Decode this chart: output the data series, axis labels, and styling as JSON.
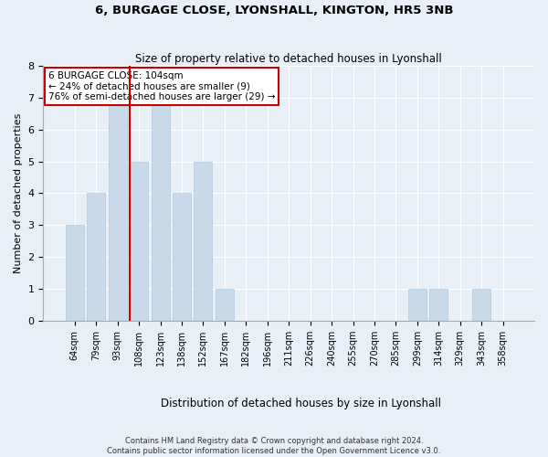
{
  "title": "6, BURGAGE CLOSE, LYONSHALL, KINGTON, HR5 3NB",
  "subtitle": "Size of property relative to detached houses in Lyonshall",
  "xlabel": "Distribution of detached houses by size in Lyonshall",
  "ylabel": "Number of detached properties",
  "categories": [
    "64sqm",
    "79sqm",
    "93sqm",
    "108sqm",
    "123sqm",
    "138sqm",
    "152sqm",
    "167sqm",
    "182sqm",
    "196sqm",
    "211sqm",
    "226sqm",
    "240sqm",
    "255sqm",
    "270sqm",
    "285sqm",
    "299sqm",
    "314sqm",
    "329sqm",
    "343sqm",
    "358sqm"
  ],
  "values": [
    3,
    4,
    7,
    5,
    7,
    4,
    5,
    1,
    0,
    0,
    0,
    0,
    0,
    0,
    0,
    0,
    1,
    1,
    0,
    1,
    0
  ],
  "bar_color": "#c8daea",
  "bar_edge_color": "#b0c8e0",
  "red_line_color": "#cc0000",
  "annotation_text": "6 BURGAGE CLOSE: 104sqm\n← 24% of detached houses are smaller (9)\n76% of semi-detached houses are larger (29) →",
  "annotation_box_color": "#ffffff",
  "annotation_box_edge": "#cc0000",
  "ylim": [
    0,
    8
  ],
  "yticks": [
    0,
    1,
    2,
    3,
    4,
    5,
    6,
    7,
    8
  ],
  "footer": "Contains HM Land Registry data © Crown copyright and database right 2024.\nContains public sector information licensed under the Open Government Licence v3.0.",
  "background_color": "#e8eff6",
  "plot_background": "#e8eff6"
}
